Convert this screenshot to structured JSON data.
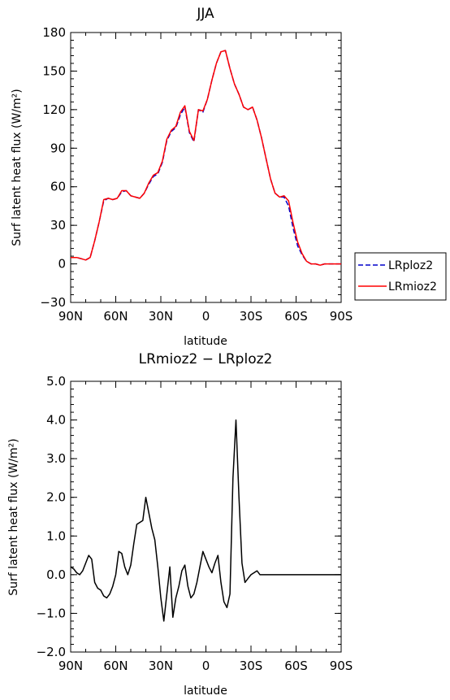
{
  "chart_data": [
    {
      "type": "line",
      "title": "JJA",
      "xlabel": "latitude",
      "ylabel": "Surf latent heat flux (W/m²)",
      "xlim": [
        90,
        -90
      ],
      "ylim": [
        -30,
        180
      ],
      "xticks": [
        {
          "v": 90,
          "label": "90N"
        },
        {
          "v": 60,
          "label": "60N"
        },
        {
          "v": 30,
          "label": "30N"
        },
        {
          "v": 0,
          "label": "0"
        },
        {
          "v": -30,
          "label": "30S"
        },
        {
          "v": -60,
          "label": "60S"
        },
        {
          "v": -90,
          "label": "90S"
        }
      ],
      "yticks": [
        {
          "v": 180,
          "label": "180"
        },
        {
          "v": 150,
          "label": "150"
        },
        {
          "v": 120,
          "label": "120"
        },
        {
          "v": 90,
          "label": "90"
        },
        {
          "v": 60,
          "label": "60"
        },
        {
          "v": 30,
          "label": "30"
        },
        {
          "v": 0,
          "label": "0"
        },
        {
          "v": -30,
          "label": "−30"
        }
      ],
      "legend_position": "right",
      "series": [
        {
          "name": "LRploz2",
          "color": "#0000cc",
          "dash": "dashed",
          "x": [
            90,
            86,
            83,
            80,
            77,
            74,
            71,
            68,
            65,
            62,
            59,
            56,
            53,
            50,
            47,
            44,
            41,
            38,
            35,
            32,
            29,
            26,
            23,
            20,
            17,
            14,
            11,
            8,
            5,
            2,
            -1,
            -4,
            -7,
            -10,
            -13,
            -16,
            -19,
            -22,
            -25,
            -28,
            -31,
            -34,
            -37,
            -40,
            -43,
            -46,
            -49,
            -52,
            -55,
            -58,
            -61,
            -64,
            -67,
            -70,
            -73,
            -76,
            -79,
            -82,
            -85,
            -88,
            -90
          ],
          "y": [
            5,
            5,
            4,
            3,
            5,
            18,
            33,
            49,
            51,
            50,
            51,
            56,
            57,
            53,
            52,
            51,
            55,
            62,
            68,
            70,
            79,
            96,
            103,
            106,
            116,
            122,
            102,
            95,
            120,
            118,
            128,
            143,
            156,
            165,
            166,
            152,
            140,
            132,
            122,
            120,
            122,
            112,
            98,
            82,
            66,
            55,
            52,
            52,
            45,
            28,
            14,
            7,
            2,
            0,
            0,
            -1,
            0,
            0,
            0,
            0,
            0
          ]
        },
        {
          "name": "LRmioz2",
          "color": "#ff0000",
          "dash": "solid",
          "x": [
            90,
            86,
            83,
            80,
            77,
            74,
            71,
            68,
            65,
            62,
            59,
            56,
            53,
            50,
            47,
            44,
            41,
            38,
            35,
            32,
            29,
            26,
            23,
            20,
            17,
            14,
            11,
            8,
            5,
            2,
            -1,
            -4,
            -7,
            -10,
            -13,
            -16,
            -19,
            -22,
            -25,
            -28,
            -31,
            -34,
            -37,
            -40,
            -43,
            -46,
            -49,
            -52,
            -55,
            -58,
            -61,
            -64,
            -67,
            -70,
            -73,
            -76,
            -79,
            -82,
            -85,
            -88,
            -90
          ],
          "y": [
            5,
            5,
            4,
            3,
            5,
            18,
            33,
            50,
            51,
            50,
            51,
            57,
            57,
            53,
            52,
            51,
            55,
            63,
            69,
            71,
            80,
            97,
            104,
            107,
            118,
            123,
            103,
            96,
            120,
            119,
            128,
            143,
            156,
            165,
            166,
            152,
            140,
            132,
            122,
            120,
            122,
            112,
            98,
            82,
            66,
            55,
            52,
            53,
            49,
            32,
            17,
            8,
            2,
            0,
            0,
            -1,
            0,
            0,
            0,
            0,
            0
          ]
        }
      ]
    },
    {
      "type": "line",
      "title": "LRmioz2 − LRploz2",
      "xlabel": "latitude",
      "ylabel": "Surf latent heat flux (W/m²)",
      "xlim": [
        90,
        -90
      ],
      "ylim": [
        -2,
        5
      ],
      "xticks": [
        {
          "v": 90,
          "label": "90N"
        },
        {
          "v": 60,
          "label": "60N"
        },
        {
          "v": 30,
          "label": "30N"
        },
        {
          "v": 0,
          "label": "0"
        },
        {
          "v": -30,
          "label": "30S"
        },
        {
          "v": -60,
          "label": "60S"
        },
        {
          "v": -90,
          "label": "90S"
        }
      ],
      "yticks": [
        {
          "v": 5,
          "label": "5.0"
        },
        {
          "v": 4,
          "label": "4.0"
        },
        {
          "v": 3,
          "label": "3.0"
        },
        {
          "v": 2,
          "label": "2.0"
        },
        {
          "v": 1,
          "label": "1.0"
        },
        {
          "v": 0,
          "label": "0.0"
        },
        {
          "v": -1,
          "label": "−1.0"
        },
        {
          "v": -2,
          "label": "−2.0"
        }
      ],
      "series": [
        {
          "color": "#000000",
          "dash": "solid",
          "x": [
            90,
            88,
            86,
            84,
            82,
            80,
            78,
            76,
            74,
            72,
            70,
            68,
            66,
            64,
            62,
            60,
            58,
            56,
            54,
            52,
            50,
            48,
            46,
            44,
            42,
            40,
            38,
            36,
            34,
            32,
            30,
            28,
            26,
            24,
            22,
            20,
            18,
            16,
            14,
            12,
            10,
            8,
            6,
            4,
            2,
            0,
            -2,
            -4,
            -6,
            -8,
            -10,
            -12,
            -14,
            -16,
            -18,
            -20,
            -22,
            -24,
            -26,
            -28,
            -30,
            -32,
            -34,
            -36,
            -38,
            -40,
            -42,
            -44,
            -46,
            -48,
            -50,
            -52,
            -54,
            -56,
            -58,
            -60,
            -62,
            -64,
            -66,
            -68,
            -70,
            -72,
            -74,
            -76,
            -78,
            -80,
            -82,
            -84,
            -86,
            -88,
            -90
          ],
          "y": [
            0.2,
            0.15,
            0.05,
            0.0,
            0.1,
            0.3,
            0.5,
            0.4,
            -0.2,
            -0.35,
            -0.4,
            -0.55,
            -0.6,
            -0.5,
            -0.3,
            0.0,
            0.6,
            0.55,
            0.2,
            0.0,
            0.25,
            0.8,
            1.3,
            1.35,
            1.4,
            2.0,
            1.6,
            1.2,
            0.9,
            0.2,
            -0.6,
            -1.2,
            -0.5,
            0.2,
            -1.1,
            -0.6,
            -0.3,
            0.1,
            0.25,
            -0.3,
            -0.6,
            -0.5,
            -0.2,
            0.2,
            0.6,
            0.4,
            0.2,
            0.05,
            0.3,
            0.5,
            -0.2,
            -0.7,
            -0.85,
            -0.5,
            2.5,
            4.0,
            2.0,
            0.3,
            -0.2,
            -0.1,
            0.0,
            0.05,
            0.1,
            0.0,
            0.0,
            0.0,
            0.0,
            0.0,
            0.0,
            0.0,
            0.0,
            0.0,
            0.0,
            0.0,
            0.0,
            0.0,
            0.0,
            0.0,
            0.0,
            0.0,
            0.0,
            0.0,
            0.0,
            0.0,
            0.0,
            0.0,
            0.0,
            0.0,
            0.0,
            0.0,
            0.0
          ]
        }
      ]
    }
  ]
}
